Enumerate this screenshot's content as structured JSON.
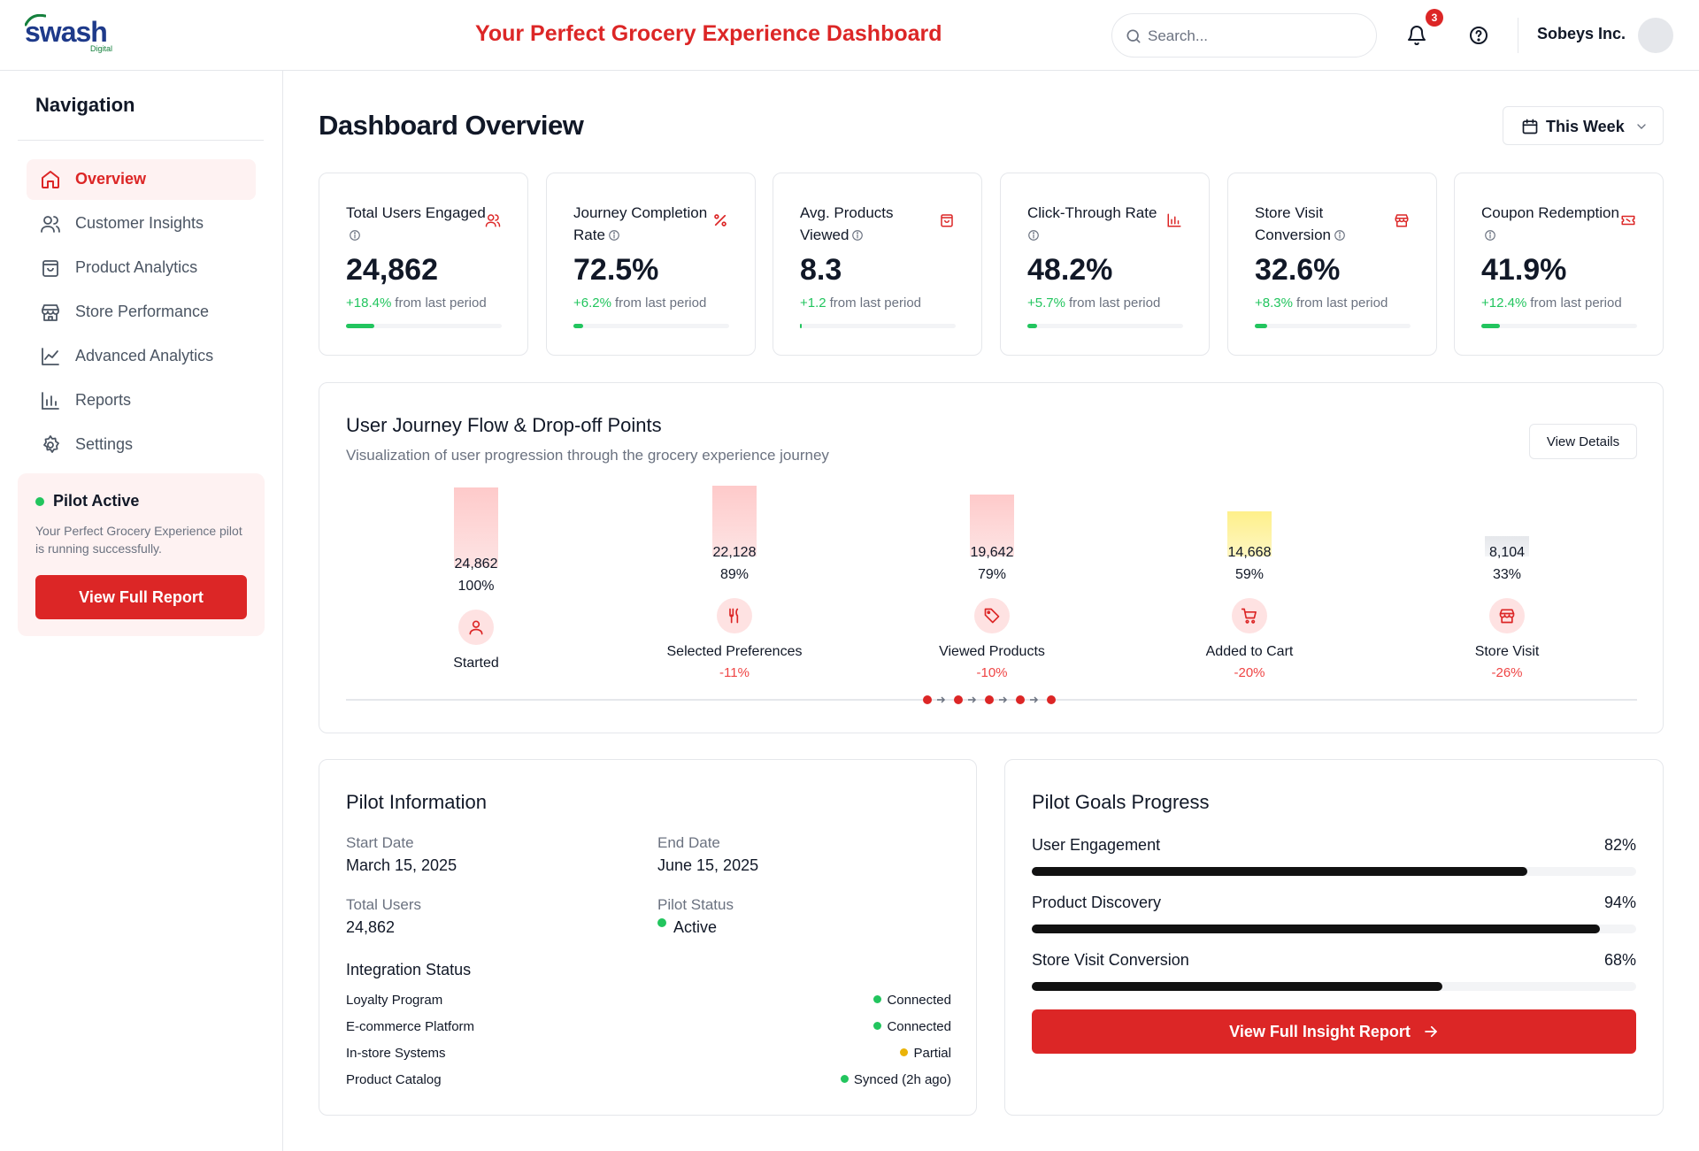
{
  "header": {
    "logo_text": "swash",
    "logo_sub": "Digital",
    "title": "Your Perfect Grocery Experience Dashboard",
    "search_placeholder": "Search...",
    "notification_count": "3",
    "company": "Sobeys Inc."
  },
  "sidebar": {
    "title": "Navigation",
    "items": [
      {
        "label": "Overview",
        "icon": "home-icon",
        "active": true
      },
      {
        "label": "Customer Insights",
        "icon": "users-icon"
      },
      {
        "label": "Product Analytics",
        "icon": "shopping-bag-icon"
      },
      {
        "label": "Store Performance",
        "icon": "store-icon"
      },
      {
        "label": "Advanced Analytics",
        "icon": "line-chart-icon"
      },
      {
        "label": "Reports",
        "icon": "bar-chart-icon"
      },
      {
        "label": "Settings",
        "icon": "gear-icon"
      }
    ],
    "pilot": {
      "title": "Pilot Active",
      "description": "Your Perfect Grocery Experience pilot is running successfully.",
      "button": "View Full Report"
    }
  },
  "main": {
    "title": "Dashboard Overview",
    "period": "This Week",
    "kpis": [
      {
        "label": "Total Users Engaged",
        "value": "24,862",
        "change": "+18.4%",
        "change_rest": "from last period",
        "progress": 0.18,
        "icon": "users-icon"
      },
      {
        "label": "Journey Completion Rate",
        "value": "72.5%",
        "change": "+6.2%",
        "change_rest": "from last period",
        "progress": 0.06,
        "icon": "percent-icon"
      },
      {
        "label": "Avg. Products Viewed",
        "value": "8.3",
        "change": "+1.2",
        "change_rest": "from last period",
        "progress": 0.01,
        "icon": "shopping-bag-icon"
      },
      {
        "label": "Click-Through Rate",
        "value": "48.2%",
        "change": "+5.7%",
        "change_rest": "from last period",
        "progress": 0.06,
        "icon": "bar-chart-icon"
      },
      {
        "label": "Store Visit Conversion",
        "value": "32.6%",
        "change": "+8.3%",
        "change_rest": "from last period",
        "progress": 0.08,
        "icon": "store-icon"
      },
      {
        "label": "Coupon Redemption",
        "value": "41.9%",
        "change": "+12.4%",
        "change_rest": "from last period",
        "progress": 0.12,
        "icon": "ticket-icon"
      }
    ],
    "journey": {
      "title": "User Journey Flow & Drop-off Points",
      "subtitle": "Visualization of user progression through the grocery experience journey",
      "view_details": "View Details",
      "stages": [
        {
          "name": "Started",
          "count": "24,862",
          "percent": "100%",
          "drop": "",
          "icon": "user-icon",
          "bar_color": "#fecaca"
        },
        {
          "name": "Selected Preferences",
          "count": "22,128",
          "percent": "89%",
          "drop": "-11%",
          "icon": "utensils-icon",
          "bar_color": "#fecaca"
        },
        {
          "name": "Viewed Products",
          "count": "19,642",
          "percent": "79%",
          "drop": "-10%",
          "icon": "tag-icon",
          "bar_color": "#fecaca"
        },
        {
          "name": "Added to Cart",
          "count": "14,668",
          "percent": "59%",
          "drop": "-20%",
          "icon": "cart-icon",
          "bar_color": "#fef08a"
        },
        {
          "name": "Store Visit",
          "count": "8,104",
          "percent": "33%",
          "drop": "-26%",
          "icon": "store-icon",
          "bar_color": "#e5e7eb"
        }
      ]
    },
    "pilot_info": {
      "title": "Pilot Information",
      "start_label": "Start Date",
      "start_value": "March 15, 2025",
      "end_label": "End Date",
      "end_value": "June 15, 2025",
      "users_label": "Total Users",
      "users_value": "24,862",
      "status_label": "Pilot Status",
      "status_value": "Active",
      "integration_title": "Integration Status",
      "integrations": [
        {
          "name": "Loyalty Program",
          "status": "Connected",
          "color": "#22c55e"
        },
        {
          "name": "E-commerce Platform",
          "status": "Connected",
          "color": "#22c55e"
        },
        {
          "name": "In-store Systems",
          "status": "Partial",
          "color": "#eab308"
        },
        {
          "name": "Product Catalog",
          "status": "Synced (2h ago)",
          "color": "#22c55e"
        }
      ]
    },
    "goals": {
      "title": "Pilot Goals Progress",
      "items": [
        {
          "label": "User Engagement",
          "percent": "82%",
          "value": 0.82
        },
        {
          "label": "Product Discovery",
          "percent": "94%",
          "value": 0.94
        },
        {
          "label": "Store Visit Conversion",
          "percent": "68%",
          "value": 0.68
        }
      ],
      "button": "View Full Insight Report"
    }
  },
  "colors": {
    "accent": "#dc2626",
    "positive": "#22c55e",
    "warning": "#eab308"
  }
}
